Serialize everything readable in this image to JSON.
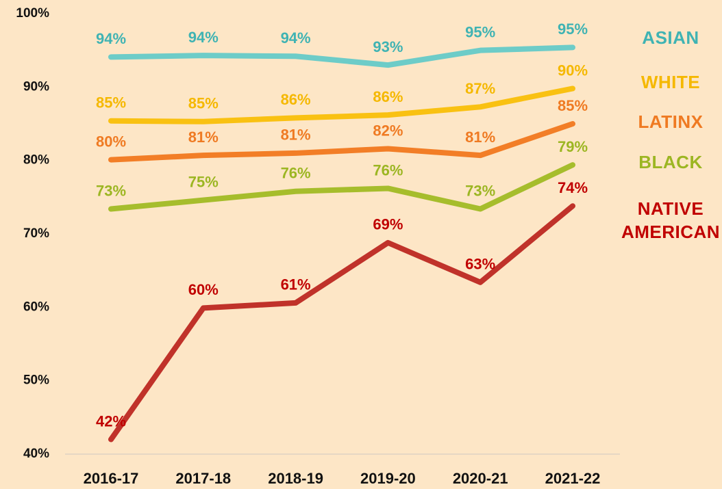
{
  "chart_data": {
    "type": "line",
    "categories": [
      "2016-17",
      "2017-18",
      "2018-19",
      "2019-20",
      "2020-21",
      "2021-22"
    ],
    "ylim": [
      40,
      100
    ],
    "yticks": [
      {
        "value": 40,
        "label": "40%"
      },
      {
        "value": 50,
        "label": "50%"
      },
      {
        "value": 60,
        "label": "60%"
      },
      {
        "value": 70,
        "label": "70%"
      },
      {
        "value": 80,
        "label": "80%"
      },
      {
        "value": 90,
        "label": "90%"
      },
      {
        "value": 100,
        "label": "100%"
      }
    ],
    "series": [
      {
        "name": "ASIAN",
        "color": "#6dccc8",
        "label_color": "#3fb3b3",
        "values": [
          94.1,
          94.3,
          94.2,
          93.0,
          95.0,
          95.4
        ],
        "value_labels": [
          "94%",
          "94%",
          "94%",
          "93%",
          "95%",
          "95%"
        ]
      },
      {
        "name": "WHITE",
        "color": "#f9c112",
        "label_color": "#f5b800",
        "values": [
          85.4,
          85.3,
          85.8,
          86.2,
          87.3,
          89.8
        ],
        "value_labels": [
          "85%",
          "85%",
          "86%",
          "86%",
          "87%",
          "90%"
        ]
      },
      {
        "name": "LATINX",
        "color": "#f27e27",
        "label_color": "#ef7a22",
        "values": [
          80.1,
          80.7,
          81.0,
          81.6,
          80.7,
          85.0
        ],
        "value_labels": [
          "80%",
          "81%",
          "81%",
          "82%",
          "81%",
          "85%"
        ]
      },
      {
        "name": "BLACK",
        "color": "#a6bd2c",
        "label_color": "#9cb622",
        "values": [
          73.4,
          74.6,
          75.8,
          76.2,
          73.4,
          79.4
        ],
        "value_labels": [
          "73%",
          "75%",
          "76%",
          "76%",
          "73%",
          "79%"
        ]
      },
      {
        "name": "NATIVE AMERICAN",
        "color": "#c0322a",
        "label_color": "#c00000",
        "values": [
          42.0,
          59.9,
          60.6,
          68.8,
          63.4,
          73.8
        ],
        "value_labels": [
          "42%",
          "60%",
          "61%",
          "69%",
          "63%",
          "74%"
        ]
      }
    ]
  }
}
